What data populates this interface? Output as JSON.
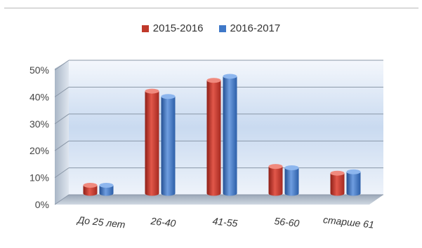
{
  "chart_data": {
    "type": "bar",
    "title": "",
    "xlabel": "",
    "ylabel": "",
    "categories": [
      "До 25 лет",
      "26-40",
      "41-55",
      "56-60",
      "старше 61"
    ],
    "series": [
      {
        "name": "2015-2016",
        "color": "#c0392b",
        "values": [
          3,
          38,
          42,
          10,
          7.5
        ]
      },
      {
        "name": "2016-2017",
        "color": "#3f78c8",
        "values": [
          3,
          36,
          43.5,
          9.5,
          8
        ]
      }
    ],
    "y_ticks": [
      "0%",
      "10%",
      "20%",
      "30%",
      "40%",
      "50%"
    ],
    "ylim": [
      0,
      50
    ],
    "grid": true,
    "legend_position": "top"
  }
}
